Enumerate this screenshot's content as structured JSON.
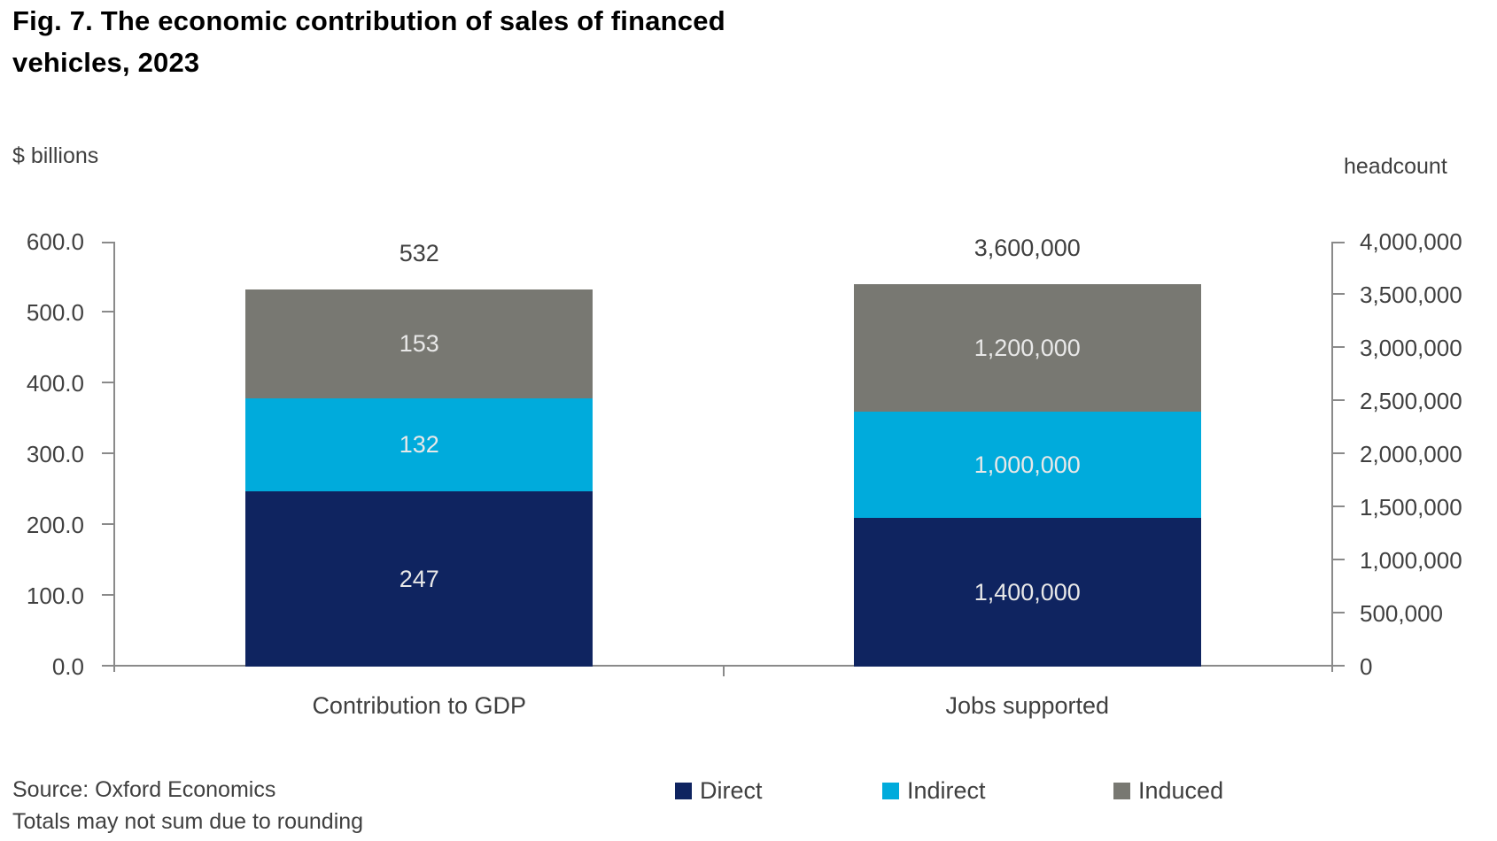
{
  "figure": {
    "title_line1": "Fig. 7. The economic contribution of sales of financed",
    "title_line2": "vehicles, 2023",
    "source_line1": "Source: Oxford Economics",
    "source_line2": "Totals may not sum due to rounding"
  },
  "chart_data": {
    "type": "bar",
    "subtype": "stacked",
    "title": "Fig. 7. The economic contribution of sales of financed vehicles, 2023",
    "categories": [
      "Contribution to GDP",
      "Jobs supported"
    ],
    "series": [
      {
        "name": "Direct",
        "color": "#0f2460",
        "values": [
          247,
          1400000
        ]
      },
      {
        "name": "Indirect",
        "color": "#00abdc",
        "values": [
          132,
          1000000
        ]
      },
      {
        "name": "Induced",
        "color": "#787872",
        "values": [
          153,
          1200000
        ]
      }
    ],
    "segment_labels": [
      [
        "247",
        "132",
        "153"
      ],
      [
        "1,400,000",
        "1,000,000",
        "1,200,000"
      ]
    ],
    "totals": [
      "532",
      "3,600,000"
    ],
    "left_axis": {
      "label": "$ billions",
      "min": 0,
      "max": 600,
      "ticks": [
        "600.0",
        "500.0",
        "400.0",
        "300.0",
        "200.0",
        "100.0",
        "0.0"
      ]
    },
    "right_axis": {
      "label": "headcount",
      "min": 0,
      "max": 4000000,
      "ticks": [
        "4,000,000",
        "3,500,000",
        "3,000,000",
        "2,500,000",
        "2,000,000",
        "1,500,000",
        "1,000,000",
        "500,000",
        "0"
      ]
    },
    "category_axis_max": [
      600,
      4000000
    ],
    "legend": [
      "Direct",
      "Indirect",
      "Induced"
    ],
    "legend_position": "bottom",
    "grid": false,
    "colors": {
      "axis_line": "#8a8a8a",
      "tick_text": "#404040",
      "on_bar_label": "#e8e8e8",
      "total_label": "#404040"
    }
  }
}
